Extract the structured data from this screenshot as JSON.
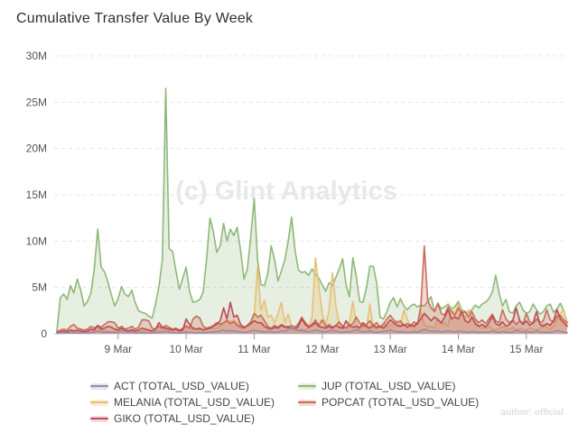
{
  "title": "Cumulative Transfer Value By Week",
  "watermark": "(c) Glint Analytics",
  "author_note": "author: official",
  "chart_data": {
    "type": "area",
    "title": "Cumulative Transfer Value By Week",
    "grid": "horizontal-dashed",
    "legend_position": "bottom",
    "values_unit": "USD (millions)",
    "x_axis": {
      "domain_days": [
        8.06,
        15.6
      ],
      "ticks": [
        {
          "day": 9,
          "label": "9 Mar"
        },
        {
          "day": 10,
          "label": "10 Mar"
        },
        {
          "day": 11,
          "label": "11 Mar"
        },
        {
          "day": 12,
          "label": "12 Mar"
        },
        {
          "day": 13,
          "label": "13 Mar"
        },
        {
          "day": 14,
          "label": "14 Mar"
        },
        {
          "day": 15,
          "label": "15 Mar"
        }
      ]
    },
    "y_axis": {
      "max": 30,
      "ticks": [
        {
          "v": 0,
          "label": "0"
        },
        {
          "v": 5,
          "label": "5M"
        },
        {
          "v": 10,
          "label": "10M"
        },
        {
          "v": 15,
          "label": "15M"
        },
        {
          "v": 20,
          "label": "20M"
        },
        {
          "v": 25,
          "label": "25M"
        },
        {
          "v": 30,
          "label": "30M"
        }
      ]
    },
    "x_start_day": 8.1,
    "x_step_day": 0.05,
    "draw_order": [
      3,
      1,
      4,
      2,
      0
    ],
    "legend_display_order": [
      0,
      3,
      1,
      4,
      2
    ],
    "series": [
      {
        "name": "ACT (TOTAL_USD_VALUE)",
        "short": "ACT",
        "color": "#9d87af",
        "fill": "#e6e1eb",
        "fill_opacity": 0.2,
        "values": [
          0.05,
          0.1,
          0.1,
          0.1,
          0.15,
          0.1,
          0.1,
          0.1,
          0.1,
          0.1,
          0.15,
          0.2,
          0.3,
          0.2,
          0.15,
          0.2,
          0.15,
          0.1,
          0.2,
          0.3,
          0.2,
          0.15,
          0.2,
          0.1,
          0.1,
          0.15,
          0.1,
          0.1,
          0.1,
          0.15,
          0.2,
          0.2,
          0.3,
          0.2,
          0.15,
          0.1,
          0.1,
          0.15,
          0.2,
          0.15,
          0.1,
          0.1,
          0.15,
          0.1,
          0.15,
          0.2,
          0.2,
          0.25,
          0.3,
          0.4,
          0.3,
          0.35,
          0.3,
          0.25,
          0.2,
          0.15,
          0.2,
          0.3,
          0.4,
          0.3,
          0.25,
          0.2,
          0.25,
          0.2,
          0.15,
          0.2,
          0.3,
          0.25,
          0.5,
          0.65,
          0.5,
          0.3,
          0.35,
          0.25,
          0.2,
          0.3,
          0.4,
          0.3,
          0.25,
          0.2,
          0.3,
          0.35,
          0.3,
          0.2,
          0.15,
          0.25,
          0.2,
          0.3,
          0.45,
          0.3,
          0.2,
          0.25,
          0.3,
          0.2,
          0.15,
          0.2,
          0.25,
          0.3,
          0.4,
          0.3,
          0.2,
          0.25,
          0.2,
          0.15,
          0.2,
          0.25,
          0.2,
          0.3,
          0.5,
          0.35,
          0.3,
          0.25,
          0.3,
          0.2,
          0.25,
          0.3,
          0.25,
          0.2,
          0.3,
          0.25,
          0.2,
          0.15,
          0.25,
          0.2,
          0.15,
          0.2,
          0.15,
          0.2,
          0.3,
          0.2,
          0.15,
          0.25,
          0.2,
          0.15,
          0.2,
          0.4,
          0.25,
          0.2,
          0.25,
          0.2,
          0.15,
          0.3,
          0.2,
          0.15,
          0.2,
          0.15,
          0.2,
          0.35,
          0.25,
          0.2,
          0.1
        ]
      },
      {
        "name": "MELANIA (TOTAL_USD_VALUE)",
        "short": "MELANIA",
        "color": "#e7c077",
        "fill": "#f8ecd6",
        "fill_opacity": 0.3,
        "values": [
          0.1,
          0.3,
          0.2,
          0.4,
          0.3,
          0.2,
          0.3,
          0.2,
          0.3,
          0.2,
          0.4,
          0.5,
          0.8,
          0.4,
          0.3,
          0.3,
          0.2,
          0.3,
          0.4,
          0.5,
          0.3,
          0.3,
          0.5,
          0.3,
          0.2,
          0.3,
          0.4,
          0.3,
          0.2,
          0.3,
          0.4,
          0.5,
          0.6,
          0.4,
          0.5,
          0.4,
          0.3,
          0.5,
          0.9,
          0.6,
          0.4,
          0.5,
          0.4,
          0.5,
          0.6,
          0.7,
          0.5,
          0.6,
          0.8,
          1.2,
          1.5,
          1.3,
          1.5,
          1.1,
          0.8,
          0.6,
          0.8,
          1.2,
          2.0,
          7.2,
          2.5,
          3.6,
          1.8,
          2.0,
          1.2,
          2.2,
          3.4,
          1.2,
          2.1,
          0.8,
          0.5,
          0.4,
          0.5,
          0.4,
          0.6,
          1.8,
          8.2,
          5.2,
          2.2,
          1.0,
          2.5,
          6.6,
          3.0,
          1.0,
          0.6,
          0.7,
          1.2,
          3.5,
          1.1,
          0.7,
          1.1,
          0.6,
          3.2,
          0.8,
          0.5,
          0.8,
          1.2,
          0.7,
          0.9,
          1.1,
          1.4,
          0.9,
          2.6,
          1.6,
          0.8,
          0.6,
          1.2,
          2.4,
          1.0,
          0.7,
          0.8,
          0.6,
          1.7,
          1.0,
          1.2,
          0.8,
          2.8,
          2.2,
          3.2,
          2.4,
          1.6,
          2.6,
          1.8,
          1.5,
          0.8,
          0.6,
          0.7,
          0.9,
          0.5,
          0.4,
          0.6,
          0.8,
          0.4,
          0.5,
          0.7,
          0.4,
          0.6,
          0.5,
          0.4,
          0.6,
          0.5,
          0.4,
          0.6,
          1.1,
          0.7,
          0.5,
          0.8,
          1.5,
          2.2,
          2.6,
          0.9
        ]
      },
      {
        "name": "GIKO (TOTAL_USD_VALUE)",
        "short": "GIKO",
        "color": "#bd4a55",
        "fill": "#f2dbdd",
        "fill_opacity": 0.18,
        "values": [
          0.1,
          0.2,
          0.3,
          0.2,
          0.4,
          0.3,
          0.4,
          0.3,
          0.2,
          0.3,
          0.5,
          0.4,
          0.9,
          0.5,
          0.6,
          0.8,
          0.7,
          0.5,
          0.4,
          0.6,
          0.4,
          0.3,
          0.4,
          0.3,
          0.4,
          0.6,
          0.5,
          0.4,
          0.3,
          0.5,
          1.2,
          0.7,
          0.6,
          0.5,
          0.4,
          0.5,
          0.3,
          0.4,
          1.6,
          1.0,
          0.6,
          0.5,
          0.6,
          0.4,
          0.5,
          0.6,
          0.8,
          1.0,
          1.4,
          2.8,
          1.6,
          3.4,
          1.8,
          2.0,
          1.0,
          0.7,
          0.9,
          1.1,
          1.4,
          1.2,
          1.2,
          0.8,
          0.6,
          0.5,
          0.7,
          0.6,
          0.9,
          0.7,
          0.8,
          0.6,
          0.5,
          0.8,
          1.6,
          1.0,
          0.7,
          0.9,
          1.2,
          0.8,
          0.7,
          0.6,
          0.8,
          0.6,
          0.9,
          0.7,
          0.6,
          1.4,
          0.9,
          0.7,
          0.8,
          0.6,
          1.2,
          0.8,
          0.6,
          0.9,
          0.7,
          0.8,
          0.6,
          1.0,
          1.5,
          1.2,
          0.9,
          0.8,
          1.0,
          0.7,
          1.0,
          0.8,
          1.2,
          1.6,
          2.2,
          1.8,
          1.4,
          1.8,
          1.5,
          1.2,
          1.8,
          2.6,
          1.6,
          1.8,
          1.6,
          2.4,
          1.4,
          1.2,
          1.8,
          1.1,
          0.8,
          1.0,
          0.7,
          1.2,
          1.9,
          1.1,
          0.9,
          1.3,
          0.8,
          1.0,
          1.4,
          2.8,
          1.5,
          1.0,
          1.4,
          0.9,
          1.2,
          2.4,
          1.0,
          0.8,
          1.1,
          0.9,
          1.4,
          2.6,
          1.6,
          1.2,
          0.8
        ]
      },
      {
        "name": "JUP (TOTAL_USD_VALUE)",
        "short": "JUP",
        "color": "#8fb878",
        "fill": "#e3edda",
        "fill_opacity": 0.22,
        "values": [
          0.3,
          3.9,
          4.3,
          3.7,
          5.2,
          4.4,
          5.9,
          4.7,
          3.0,
          3.5,
          4.4,
          7.0,
          11.3,
          7.2,
          6.7,
          5.6,
          4.2,
          3.0,
          3.8,
          5.1,
          4.3,
          4.0,
          4.7,
          3.4,
          2.5,
          2.3,
          2.2,
          1.9,
          1.7,
          3.2,
          5.1,
          8.0,
          26.5,
          9.2,
          8.9,
          6.8,
          4.8,
          6.0,
          7.2,
          4.6,
          3.4,
          3.5,
          3.7,
          4.5,
          8.0,
          12.5,
          11.0,
          8.8,
          9.5,
          11.9,
          10.0,
          11.3,
          10.6,
          11.5,
          9.0,
          5.9,
          7.0,
          10.5,
          14.6,
          8.0,
          5.3,
          5.2,
          6.5,
          9.5,
          8.0,
          5.7,
          6.8,
          8.0,
          10.0,
          12.6,
          9.0,
          6.9,
          6.6,
          6.7,
          6.3,
          7.0,
          6.4,
          6.0,
          5.3,
          4.6,
          5.5,
          5.2,
          6.1,
          7.0,
          8.1,
          5.3,
          4.0,
          8.2,
          6.2,
          3.5,
          3.4,
          5.0,
          7.3,
          7.3,
          5.5,
          1.8,
          1.6,
          2.4,
          3.4,
          3.9,
          2.9,
          3.8,
          3.0,
          2.6,
          3.0,
          3.2,
          2.9,
          3.1,
          3.0,
          3.5,
          4.0,
          2.4,
          3.3,
          2.7,
          2.9,
          3.2,
          2.7,
          2.9,
          3.5,
          2.6,
          2.4,
          2.2,
          2.6,
          3.1,
          2.8,
          3.2,
          3.4,
          3.8,
          4.5,
          6.3,
          4.4,
          3.0,
          3.7,
          2.4,
          2.2,
          3.0,
          3.4,
          2.6,
          2.2,
          2.4,
          3.2,
          2.6,
          2.1,
          2.4,
          3.0,
          3.2,
          2.3,
          2.7,
          3.3,
          2.5,
          1.2
        ]
      },
      {
        "name": "POPCAT (TOTAL_USD_VALUE)",
        "short": "POPCAT",
        "color": "#c96c5c",
        "fill": "#f1dad6",
        "fill_opacity": 0.25,
        "values": [
          0.2,
          0.4,
          0.5,
          0.4,
          0.8,
          1.0,
          0.6,
          0.5,
          0.4,
          0.5,
          0.8,
          0.6,
          0.9,
          0.7,
          1.0,
          1.3,
          1.3,
          1.2,
          0.6,
          0.8,
          0.5,
          0.6,
          0.8,
          0.5,
          0.7,
          1.5,
          1.5,
          1.4,
          0.6,
          0.5,
          0.8,
          0.6,
          0.9,
          0.7,
          0.5,
          0.6,
          0.4,
          0.6,
          0.8,
          0.6,
          1.6,
          1.9,
          1.7,
          0.8,
          0.6,
          0.7,
          0.9,
          1.2,
          1.0,
          1.2,
          1.4,
          1.1,
          1.3,
          0.9,
          0.7,
          0.6,
          0.9,
          1.3,
          2.2,
          1.8,
          2.0,
          1.4,
          0.8,
          0.6,
          0.9,
          0.7,
          1.0,
          0.8,
          0.6,
          0.9,
          0.7,
          1.1,
          1.8,
          1.2,
          0.8,
          1.0,
          1.5,
          0.9,
          1.5,
          0.8,
          1.0,
          0.7,
          0.9,
          1.3,
          0.8,
          0.6,
          0.9,
          1.1,
          1.8,
          1.2,
          0.8,
          1.0,
          1.4,
          0.9,
          1.2,
          0.7,
          1.0,
          1.6,
          2.0,
          1.5,
          1.2,
          1.4,
          0.9,
          1.1,
          0.8,
          1.3,
          1.0,
          3.0,
          9.5,
          3.6,
          2.8,
          2.4,
          3.3,
          2.2,
          2.0,
          2.9,
          2.4,
          2.0,
          2.8,
          2.2,
          2.4,
          1.8,
          2.4,
          1.6,
          1.2,
          1.5,
          1.1,
          1.6,
          2.1,
          1.4,
          1.2,
          2.6,
          1.6,
          1.2,
          1.5,
          1.0,
          1.4,
          1.1,
          2.2,
          1.3,
          1.1,
          1.6,
          1.2,
          1.4,
          2.6,
          1.5,
          1.3,
          1.9,
          2.0,
          1.5,
          1.2
        ]
      }
    ]
  },
  "style": {
    "grid_color": "#e4e4e4",
    "axis_color": "#cccccc",
    "tick_color": "#999999",
    "tick_label_color": "#555555",
    "title_color": "#2f2f2f",
    "legend_text_color": "#444444",
    "watermark_color": "#e8e8e8"
  }
}
